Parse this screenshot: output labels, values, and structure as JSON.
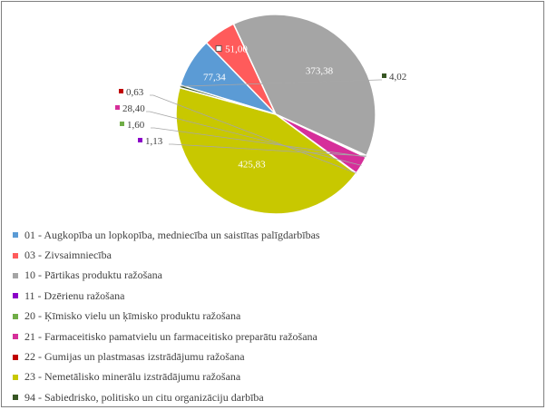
{
  "chart_data": {
    "type": "pie",
    "title": "",
    "slices": [
      {
        "label": "01 - Augkopība un lopkopība, medniecība un saistītas palīgdarbības",
        "value": 77.34,
        "display": "77,34",
        "color": "#5b9bd5"
      },
      {
        "label": "03 - Zivsaimniecība",
        "value": 51.0,
        "display": "51,00",
        "color": "#ff5b5b"
      },
      {
        "label": "10 - Pārtikas produktu ražošana",
        "value": 373.38,
        "display": "373,38",
        "color": "#a5a5a5"
      },
      {
        "label": "11 - Dzērienu ražošana",
        "value": 1.13,
        "display": "1,13",
        "color": "#8b00c8"
      },
      {
        "label": "20 - Ķīmisko vielu un ķīmisko produktu ražošana",
        "value": 1.6,
        "display": "1,60",
        "color": "#70ad47"
      },
      {
        "label": "21 - Farmaceitisko pamatvielu un farmaceitisko preparātu ražošana",
        "value": 28.4,
        "display": "28,40",
        "color": "#d62f9a"
      },
      {
        "label": "22 - Gumijas un plastmasas izstrādājumu ražošana",
        "value": 0.63,
        "display": "0,63",
        "color": "#c00000"
      },
      {
        "label": "23 - Nemetālisko minerālu izstrādājumu ražošana",
        "value": 425.83,
        "display": "425,83",
        "color": "#c8c800"
      },
      {
        "label": "94 - Sabiedrisko, politisko un citu organizāciju darbība",
        "value": 4.02,
        "display": "4,02",
        "color": "#375623"
      }
    ],
    "legend_position": "bottom"
  }
}
